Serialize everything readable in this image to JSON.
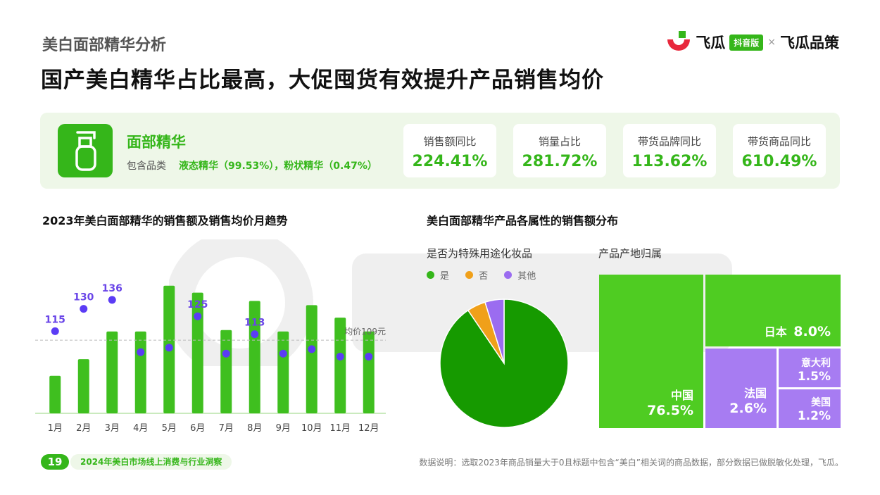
{
  "header": {
    "section": "美白面部精华分析",
    "headline": "国产美白精华占比最高，大促囤货有效提升产品销售均价"
  },
  "logo": {
    "brand": "飞瓜",
    "badge": "抖音版",
    "separator": "×",
    "partner": "飞瓜品策"
  },
  "category": {
    "name": "面部精华",
    "includes_label": "包含品类",
    "includes_value": "液态精华（99.53%），粉状精华（0.47%）"
  },
  "kpis": [
    {
      "label": "销售额同比",
      "value": "224.41%"
    },
    {
      "label": "销量占比",
      "value": "281.72%"
    },
    {
      "label": "带货品牌同比",
      "value": "113.62%"
    },
    {
      "label": "带货商品同比",
      "value": "610.49%"
    }
  ],
  "left_chart": {
    "title": "2023年美白面部精华的销售额及销售均价月趋势",
    "avg_label": "均价109元"
  },
  "right_section": {
    "title": "美白面部精华产品各属性的销售额分布",
    "pie_title": "是否为特殊用途化妆品",
    "treemap_title": "产品产地归属"
  },
  "colors": {
    "brand_green": "#35b61a",
    "bar_green": "#3fbf1f",
    "dot_purple": "#5b3cf5",
    "pie_main": "#169a00",
    "pie_no": "#f0a01a",
    "pie_other": "#9b6cf0",
    "tm_green": "#4fcc22",
    "tm_purple": "#a77cf2"
  },
  "chart_data": [
    {
      "type": "bar",
      "title": "2023年美白面部精华的销售额及销售均价月趋势",
      "categories": [
        "1月",
        "2月",
        "3月",
        "4月",
        "5月",
        "6月",
        "7月",
        "8月",
        "9月",
        "10月",
        "11月",
        "12月"
      ],
      "series": [
        {
          "values": [
            27,
            39,
            59,
            59,
            92,
            87,
            60,
            81,
            59,
            78,
            69,
            59
          ]
        },
        {
          "values": [
            115,
            130,
            136,
            101,
            104,
            125,
            100,
            113,
            100,
            103,
            98,
            98
          ]
        }
      ],
      "labels": {
        "0": "115",
        "1": "130",
        "2": "136",
        "5": "125",
        "7": "113"
      },
      "avg_line": 109,
      "ylim": [
        0,
        100
      ],
      "y2lim": [
        60,
        160
      ]
    },
    {
      "type": "pie",
      "title": "是否为特殊用途化妆品",
      "categories": [
        "是",
        "否",
        "其他"
      ],
      "values": [
        90.5,
        4.7,
        4.8
      ]
    },
    {
      "type": "treemap",
      "title": "产品产地归属",
      "categories": [
        "中国",
        "日本",
        "法国",
        "意大利",
        "美国"
      ],
      "values": [
        76.5,
        8.0,
        2.6,
        1.5,
        1.2
      ],
      "labels": [
        "76.5%",
        "8.0%",
        "2.6%",
        "1.5%",
        "1.2%"
      ]
    }
  ],
  "footer": {
    "page": "19",
    "report": "2024年美白市场线上消费与行业洞察",
    "note": "数据说明：选取2023年商品销量大于0且标题中包含“美白”相关词的商品数据，部分数据已做脱敏化处理，飞瓜。"
  }
}
